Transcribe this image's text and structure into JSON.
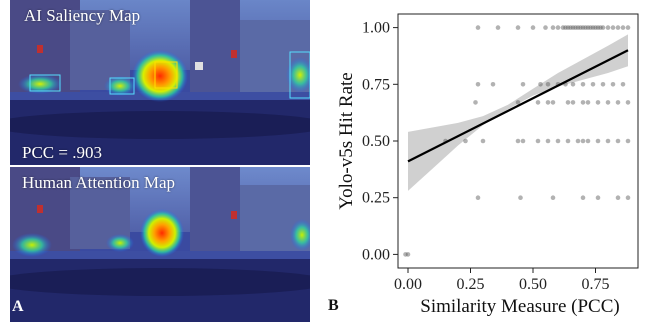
{
  "panel_a": {
    "top_title": "AI Saliency Map",
    "pcc_text": "PCC = .903",
    "bottom_title": "Human Attention Map",
    "letter": "A"
  },
  "panel_b": {
    "letter": "B"
  },
  "chart_data": {
    "type": "scatter",
    "title": "",
    "xlabel": "Similarity Measure (PCC)",
    "ylabel": "Yolo-v5s Hit Rate",
    "xlim": [
      -0.04,
      0.92
    ],
    "ylim": [
      -0.06,
      1.06
    ],
    "xticks": [
      0.0,
      0.25,
      0.5,
      0.75
    ],
    "xtick_labels": [
      "0.00",
      "0.25",
      "0.50",
      "0.75"
    ],
    "yticks": [
      0.0,
      0.25,
      0.5,
      0.75,
      1.0
    ],
    "ytick_labels": [
      "0.00",
      "0.25",
      "0.50",
      "0.75",
      "1.00"
    ],
    "grid": false,
    "points": [
      {
        "x": -0.01,
        "y": 0.0
      },
      {
        "x": 0.0,
        "y": 0.0
      },
      {
        "x": 0.28,
        "y": 1.0
      },
      {
        "x": 0.36,
        "y": 1.0
      },
      {
        "x": 0.44,
        "y": 1.0
      },
      {
        "x": 0.5,
        "y": 1.0
      },
      {
        "x": 0.55,
        "y": 1.0
      },
      {
        "x": 0.58,
        "y": 1.0
      },
      {
        "x": 0.6,
        "y": 1.0
      },
      {
        "x": 0.62,
        "y": 1.0
      },
      {
        "x": 0.63,
        "y": 1.0
      },
      {
        "x": 0.64,
        "y": 1.0
      },
      {
        "x": 0.65,
        "y": 1.0
      },
      {
        "x": 0.66,
        "y": 1.0
      },
      {
        "x": 0.67,
        "y": 1.0
      },
      {
        "x": 0.68,
        "y": 1.0
      },
      {
        "x": 0.69,
        "y": 1.0
      },
      {
        "x": 0.7,
        "y": 1.0
      },
      {
        "x": 0.71,
        "y": 1.0
      },
      {
        "x": 0.72,
        "y": 1.0
      },
      {
        "x": 0.73,
        "y": 1.0
      },
      {
        "x": 0.74,
        "y": 1.0
      },
      {
        "x": 0.75,
        "y": 1.0
      },
      {
        "x": 0.76,
        "y": 1.0
      },
      {
        "x": 0.77,
        "y": 1.0
      },
      {
        "x": 0.78,
        "y": 1.0
      },
      {
        "x": 0.8,
        "y": 1.0
      },
      {
        "x": 0.82,
        "y": 1.0
      },
      {
        "x": 0.84,
        "y": 1.0
      },
      {
        "x": 0.86,
        "y": 1.0
      },
      {
        "x": 0.88,
        "y": 1.0
      },
      {
        "x": 0.28,
        "y": 0.75
      },
      {
        "x": 0.34,
        "y": 0.75
      },
      {
        "x": 0.46,
        "y": 0.75
      },
      {
        "x": 0.53,
        "y": 0.75
      },
      {
        "x": 0.56,
        "y": 0.75
      },
      {
        "x": 0.6,
        "y": 0.75
      },
      {
        "x": 0.63,
        "y": 0.75
      },
      {
        "x": 0.66,
        "y": 0.75
      },
      {
        "x": 0.7,
        "y": 0.75
      },
      {
        "x": 0.74,
        "y": 0.75
      },
      {
        "x": 0.78,
        "y": 0.75
      },
      {
        "x": 0.82,
        "y": 0.75
      },
      {
        "x": 0.86,
        "y": 0.75
      },
      {
        "x": 0.27,
        "y": 0.67
      },
      {
        "x": 0.44,
        "y": 0.67
      },
      {
        "x": 0.52,
        "y": 0.67
      },
      {
        "x": 0.56,
        "y": 0.67
      },
      {
        "x": 0.58,
        "y": 0.67
      },
      {
        "x": 0.64,
        "y": 0.67
      },
      {
        "x": 0.66,
        "y": 0.67
      },
      {
        "x": 0.7,
        "y": 0.67
      },
      {
        "x": 0.72,
        "y": 0.67
      },
      {
        "x": 0.76,
        "y": 0.67
      },
      {
        "x": 0.8,
        "y": 0.67
      },
      {
        "x": 0.84,
        "y": 0.67
      },
      {
        "x": 0.88,
        "y": 0.67
      },
      {
        "x": 0.15,
        "y": 0.5
      },
      {
        "x": 0.23,
        "y": 0.5
      },
      {
        "x": 0.3,
        "y": 0.5
      },
      {
        "x": 0.44,
        "y": 0.5
      },
      {
        "x": 0.46,
        "y": 0.5
      },
      {
        "x": 0.52,
        "y": 0.5
      },
      {
        "x": 0.56,
        "y": 0.5
      },
      {
        "x": 0.6,
        "y": 0.5
      },
      {
        "x": 0.64,
        "y": 0.5
      },
      {
        "x": 0.68,
        "y": 0.5
      },
      {
        "x": 0.7,
        "y": 0.5
      },
      {
        "x": 0.72,
        "y": 0.5
      },
      {
        "x": 0.76,
        "y": 0.5
      },
      {
        "x": 0.8,
        "y": 0.5
      },
      {
        "x": 0.84,
        "y": 0.5
      },
      {
        "x": 0.88,
        "y": 0.5
      },
      {
        "x": 0.28,
        "y": 0.25
      },
      {
        "x": 0.45,
        "y": 0.25
      },
      {
        "x": 0.58,
        "y": 0.25
      },
      {
        "x": 0.7,
        "y": 0.25
      },
      {
        "x": 0.76,
        "y": 0.25
      },
      {
        "x": 0.84,
        "y": 0.25
      },
      {
        "x": 0.88,
        "y": 0.25
      }
    ],
    "regression_line": {
      "x": [
        0.0,
        0.88
      ],
      "y": [
        0.41,
        0.9
      ]
    },
    "confidence_band": {
      "x": [
        0.0,
        0.1,
        0.2,
        0.3,
        0.4,
        0.5,
        0.6,
        0.7,
        0.8,
        0.88
      ],
      "lower": [
        0.28,
        0.38,
        0.48,
        0.57,
        0.64,
        0.7,
        0.74,
        0.77,
        0.8,
        0.83
      ],
      "upper": [
        0.54,
        0.56,
        0.58,
        0.61,
        0.66,
        0.73,
        0.8,
        0.86,
        0.92,
        0.97
      ]
    },
    "colors": {
      "point": "#555555",
      "line": "#000000",
      "band": "#c8c8c8"
    }
  }
}
